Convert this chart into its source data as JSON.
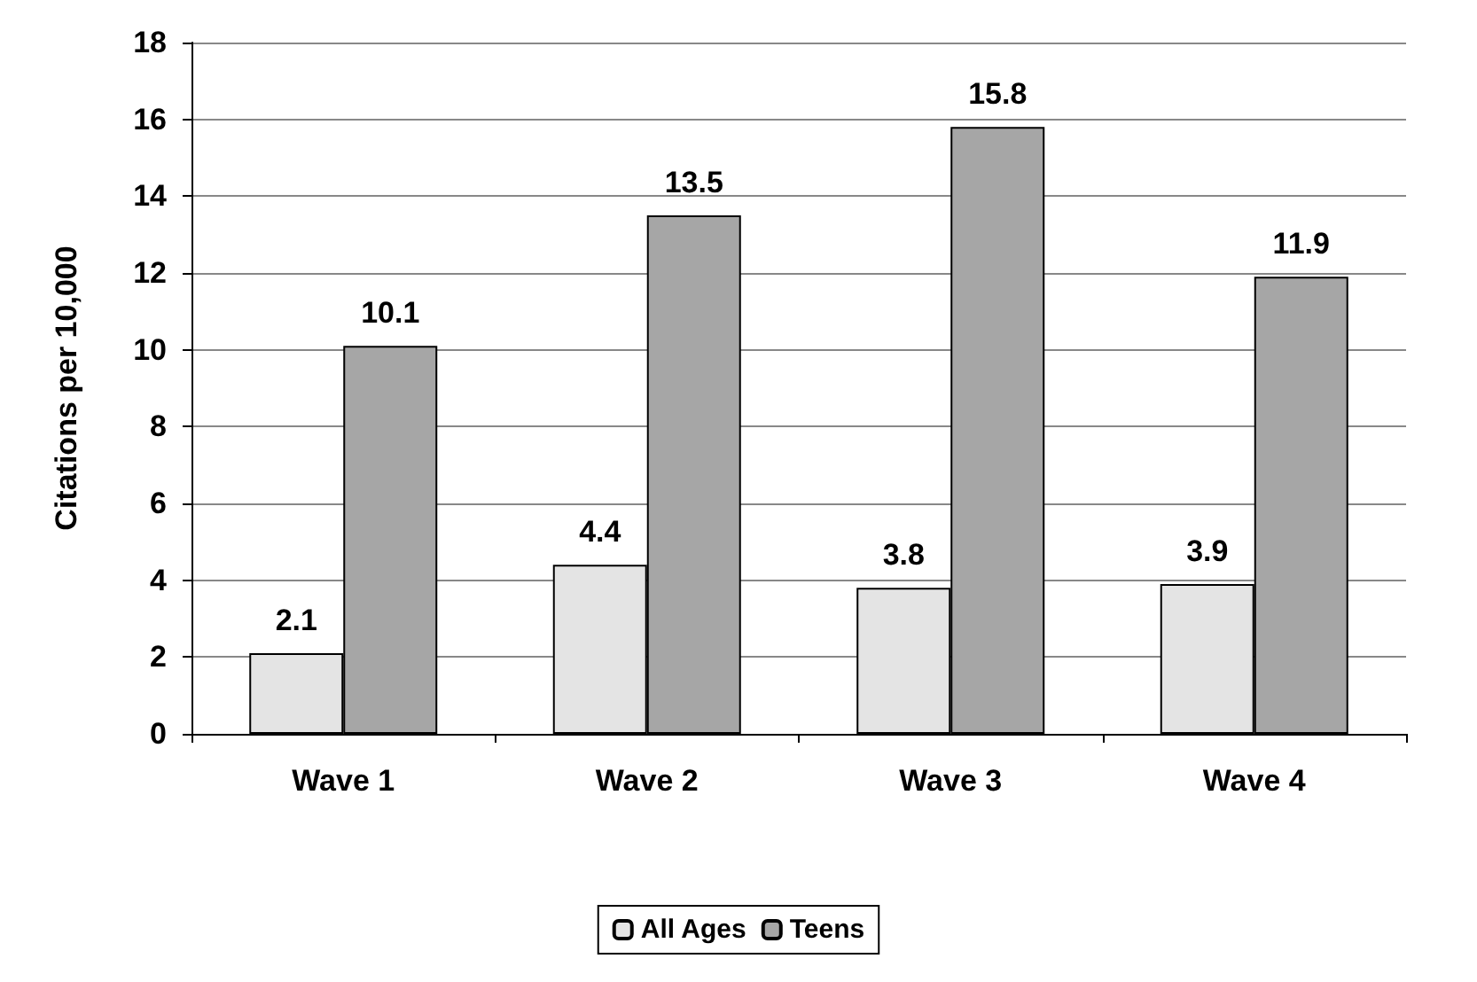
{
  "chart_data": {
    "type": "bar",
    "ylabel": "Citations per 10,000",
    "categories": [
      "Wave 1",
      "Wave 2",
      "Wave 3",
      "Wave 4"
    ],
    "series": [
      {
        "name": "All Ages",
        "color": "#e4e4e4",
        "values": [
          2.1,
          4.4,
          3.8,
          3.9
        ]
      },
      {
        "name": "Teens",
        "color": "#a6a6a6",
        "values": [
          10.1,
          13.5,
          15.8,
          11.9
        ]
      }
    ],
    "ylim": [
      0,
      18
    ],
    "yticks": [
      0,
      2,
      4,
      6,
      8,
      10,
      12,
      14,
      16,
      18
    ],
    "grid": "y",
    "legend": "bottom",
    "data_labels": true
  }
}
